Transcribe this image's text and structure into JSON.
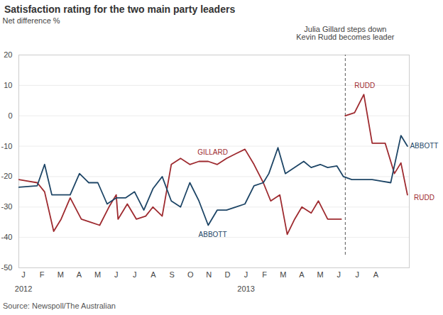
{
  "chart_data": {
    "type": "line",
    "title": "Satisfaction rating for the two main party leaders",
    "y_label": "Net difference %",
    "source": "Source: Newspoll/The Australian",
    "xlim": [
      0.25,
      21.3
    ],
    "xticks": [
      {
        "value": 0.5,
        "label": "J"
      },
      {
        "value": 1.5,
        "label": "F"
      },
      {
        "value": 2.5,
        "label": "M"
      },
      {
        "value": 3.5,
        "label": "A"
      },
      {
        "value": 4.5,
        "label": "M"
      },
      {
        "value": 5.5,
        "label": "J"
      },
      {
        "value": 6.5,
        "label": "J"
      },
      {
        "value": 7.5,
        "label": "A"
      },
      {
        "value": 8.5,
        "label": "S"
      },
      {
        "value": 9.5,
        "label": "O"
      },
      {
        "value": 10.5,
        "label": "N"
      },
      {
        "value": 11.5,
        "label": "D"
      },
      {
        "value": 12.5,
        "label": "J"
      },
      {
        "value": 13.5,
        "label": "F"
      },
      {
        "value": 14.5,
        "label": "M"
      },
      {
        "value": 15.5,
        "label": "A"
      },
      {
        "value": 16.5,
        "label": "M"
      },
      {
        "value": 17.5,
        "label": "J"
      },
      {
        "value": 18.5,
        "label": "J"
      },
      {
        "value": 19.5,
        "label": "A"
      }
    ],
    "year_labels": [
      {
        "value": 0.5,
        "label": "2012"
      },
      {
        "value": 12.5,
        "label": "2013"
      }
    ],
    "ylim": [
      -50,
      20
    ],
    "yticks": [
      -50,
      -40,
      -30,
      -20,
      -10,
      0,
      10,
      20
    ],
    "grid": true,
    "series": [
      {
        "name": "GILLARD",
        "color": "#9e2a2f",
        "x": [
          0.25,
          1.24,
          1.64,
          2.13,
          2.53,
          3.02,
          3.62,
          4.11,
          4.61,
          5.11,
          5.5,
          5.6,
          6.1,
          6.59,
          7.09,
          7.48,
          7.98,
          8.47,
          8.97,
          9.47,
          9.96,
          10.46,
          10.95,
          11.45,
          11.94,
          12.44,
          12.93,
          13.43,
          13.83,
          14.32,
          14.72,
          15.12,
          15.51,
          16.01,
          16.4,
          16.9,
          17.3,
          17.63
        ],
        "values": [
          -21,
          -22,
          -25,
          -38,
          -34,
          -27,
          -34,
          -35,
          -36,
          -30,
          -26,
          -34,
          -29,
          -34,
          -33,
          -30,
          -33,
          -16,
          -14,
          -16,
          -15,
          -15,
          -16,
          -14,
          -12.5,
          -11,
          -16,
          -22,
          -28,
          -26,
          -39,
          -34,
          -30,
          -32,
          -28,
          -34,
          -34,
          -34
        ]
      },
      {
        "name": "RUDD",
        "color": "#9e2a2f",
        "x": [
          17.85,
          18.35,
          18.85,
          19.3,
          20.0,
          20.5,
          20.85,
          21.2
        ],
        "values": [
          0,
          1,
          7,
          -9,
          -9,
          -19,
          -15.5,
          -26
        ]
      },
      {
        "name": "ABBOTT",
        "color": "#1d4566",
        "x": [
          0.25,
          1.24,
          1.64,
          2.03,
          2.53,
          3.02,
          3.52,
          4.02,
          4.51,
          5.01,
          5.5,
          6.0,
          6.49,
          6.99,
          7.48,
          7.98,
          8.47,
          8.97,
          9.47,
          9.96,
          10.46,
          10.95,
          11.45,
          11.94,
          12.44,
          12.93,
          13.43,
          13.73,
          14.22,
          14.62,
          15.12,
          15.61,
          16.01,
          16.5,
          16.9,
          17.4,
          17.75,
          18.2,
          18.7,
          19.3,
          20.3,
          20.85,
          21.2
        ],
        "values": [
          -23.5,
          -23,
          -16,
          -26,
          -26,
          -26,
          -19,
          -22,
          -22,
          -29,
          -27,
          -27,
          -25,
          -31,
          -24,
          -20,
          -28,
          -30,
          -22,
          -28,
          -36,
          -31,
          -31,
          -30,
          -29,
          -23,
          -22,
          -19,
          -10.5,
          -19,
          -17,
          -15,
          -17,
          -16,
          -17,
          -16.5,
          -20,
          -21,
          -21,
          -21,
          -22,
          -6.5,
          -10
        ]
      }
    ],
    "annotations": [
      {
        "text": "GILLARD",
        "x": 10.7,
        "y": -12
      },
      {
        "text": "ABBOTT",
        "x": 10.7,
        "y": -39
      },
      {
        "text": "RUDD",
        "x": 18.9,
        "y": 10
      },
      {
        "text": "ABBOTT",
        "x": 22.1,
        "y": -10
      },
      {
        "text": "RUDD",
        "x": 22.1,
        "y": -27
      }
    ],
    "event": {
      "x": 17.85,
      "label": [
        "Julia Gillard steps down",
        "Kevin Rudd becomes leader"
      ]
    }
  }
}
